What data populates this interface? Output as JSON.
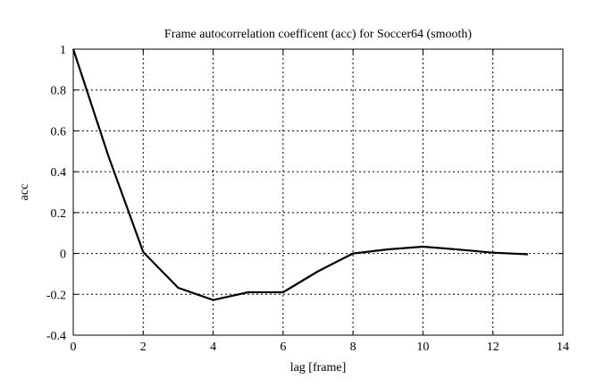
{
  "chart_data": {
    "type": "line",
    "title": "Frame autocorrelation coefficent (acc) for Soccer64 (smooth)",
    "xlabel": "lag [frame]",
    "ylabel": "acc",
    "xlim": [
      0,
      14
    ],
    "ylim": [
      -0.4,
      1
    ],
    "xticks": [
      "0",
      "2",
      "4",
      "6",
      "8",
      "10",
      "12",
      "14"
    ],
    "yticks": [
      "-0.4",
      "-0.2",
      "0",
      "0.2",
      "0.4",
      "0.6",
      "0.8",
      "1"
    ],
    "grid": true,
    "series": [
      {
        "name": "acc",
        "color": "#000000",
        "x": [
          0,
          1,
          2,
          3,
          4,
          5,
          6,
          7,
          8,
          9,
          10,
          11,
          12,
          13
        ],
        "y": [
          1.0,
          0.48,
          0.007,
          -0.168,
          -0.228,
          -0.19,
          -0.19,
          -0.087,
          0.0,
          0.02,
          0.033,
          0.019,
          0.004,
          -0.004
        ]
      }
    ]
  }
}
